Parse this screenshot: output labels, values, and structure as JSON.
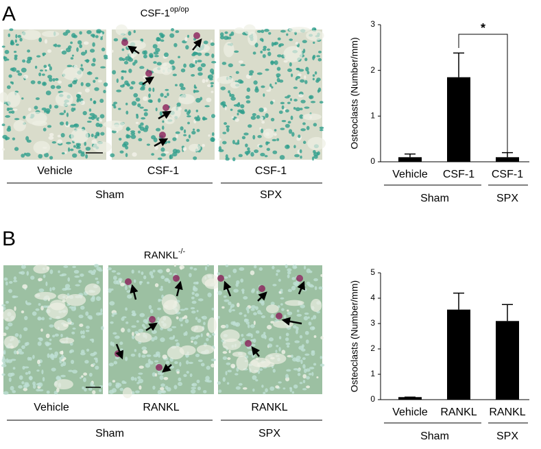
{
  "panels": [
    {
      "label": "A",
      "title": "CSF-1",
      "title_sup": "op/op",
      "image_labels": [
        "Vehicle",
        "CSF-1",
        "CSF-1"
      ],
      "groups": [
        "Sham",
        "SPX"
      ]
    },
    {
      "label": "B",
      "title": "RANKL",
      "title_sup": "-/-",
      "image_labels": [
        "Vehicle",
        "RANKL",
        "RANKL"
      ],
      "groups": [
        "Sham",
        "SPX"
      ]
    }
  ],
  "chart_data": [
    {
      "type": "bar",
      "y_label": "Osteoclasts (Number/mm)",
      "categories": [
        "Vehicle",
        "CSF-1",
        "CSF-1"
      ],
      "values": [
        0.1,
        1.85,
        0.1
      ],
      "errors": [
        0.07,
        0.53,
        0.1
      ],
      "color": "#000000",
      "groups": [
        "Sham",
        "SPX"
      ],
      "ylim": [
        0,
        3
      ],
      "yticks": [
        0,
        1,
        2,
        3
      ],
      "annotation": "*"
    },
    {
      "type": "bar",
      "y_label": "Osteoclasts (Number/mm)",
      "categories": [
        "Vehicle",
        "RANKL",
        "RANKL"
      ],
      "values": [
        0.1,
        3.55,
        3.1
      ],
      "errors": [
        0,
        0.65,
        0.65
      ],
      "color": "#000000",
      "groups": [
        "Sham",
        "SPX"
      ],
      "ylim": [
        0,
        5
      ],
      "yticks": [
        0,
        1,
        2,
        3,
        4,
        5
      ]
    }
  ]
}
